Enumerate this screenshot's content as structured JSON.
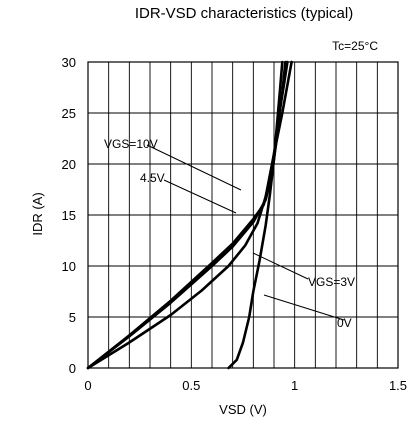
{
  "chart_data": {
    "type": "line",
    "title": "IDR-VSD characteristics (typical)",
    "condition": "Tc=25°C",
    "xlabel": "VSD (V)",
    "ylabel": "IDR (A)",
    "xlim": [
      0,
      1.5
    ],
    "ylim": [
      0,
      30
    ],
    "x_ticks": [
      "0",
      "0.5",
      "1",
      "1.5"
    ],
    "y_ticks": [
      "0",
      "5",
      "10",
      "15",
      "20",
      "25",
      "30"
    ],
    "x_tick_values": [
      0,
      0.5,
      1,
      1.5
    ],
    "y_tick_values": [
      0,
      5,
      10,
      15,
      20,
      25,
      30
    ],
    "x_minor_gridlines": [
      0.1,
      0.2,
      0.3,
      0.4,
      0.6,
      0.7,
      0.8,
      0.9,
      1.1,
      1.2,
      1.3,
      1.4
    ],
    "grid": true,
    "series": [
      {
        "name": "VGS=10V",
        "points": [
          [
            0,
            0
          ],
          [
            0.2,
            3.2
          ],
          [
            0.4,
            6.6
          ],
          [
            0.6,
            10.3
          ],
          [
            0.7,
            12.2
          ],
          [
            0.8,
            14.6
          ],
          [
            0.85,
            16
          ],
          [
            0.88,
            18.5
          ],
          [
            0.9,
            21
          ],
          [
            0.92,
            24
          ],
          [
            0.94,
            27
          ],
          [
            0.955,
            30
          ]
        ]
      },
      {
        "name": "4.5V",
        "points": [
          [
            0,
            0
          ],
          [
            0.2,
            3.1
          ],
          [
            0.4,
            6.4
          ],
          [
            0.6,
            10
          ],
          [
            0.7,
            11.9
          ],
          [
            0.8,
            14.3
          ],
          [
            0.86,
            16.5
          ],
          [
            0.89,
            19
          ],
          [
            0.91,
            22
          ],
          [
            0.93,
            25.5
          ],
          [
            0.95,
            28
          ],
          [
            0.965,
            30
          ]
        ]
      },
      {
        "name": "VGS=3V",
        "points": [
          [
            0,
            0
          ],
          [
            0.2,
            2.5
          ],
          [
            0.4,
            5.2
          ],
          [
            0.55,
            7.6
          ],
          [
            0.68,
            10
          ],
          [
            0.76,
            12
          ],
          [
            0.82,
            14.2
          ],
          [
            0.86,
            16.8
          ],
          [
            0.9,
            21
          ],
          [
            0.94,
            25
          ],
          [
            0.985,
            30
          ]
        ]
      },
      {
        "name": "0V",
        "points": [
          [
            0.68,
            0
          ],
          [
            0.72,
            0.8
          ],
          [
            0.75,
            2.5
          ],
          [
            0.78,
            5
          ],
          [
            0.8,
            7.5
          ],
          [
            0.83,
            10.5
          ],
          [
            0.86,
            14
          ],
          [
            0.88,
            17
          ],
          [
            0.9,
            20.5
          ],
          [
            0.915,
            24
          ],
          [
            0.93,
            27.5
          ],
          [
            0.94,
            30
          ]
        ]
      }
    ],
    "series_labels": [
      "VGS=10V",
      "4.5V",
      "VGS=3V",
      "0V"
    ]
  }
}
